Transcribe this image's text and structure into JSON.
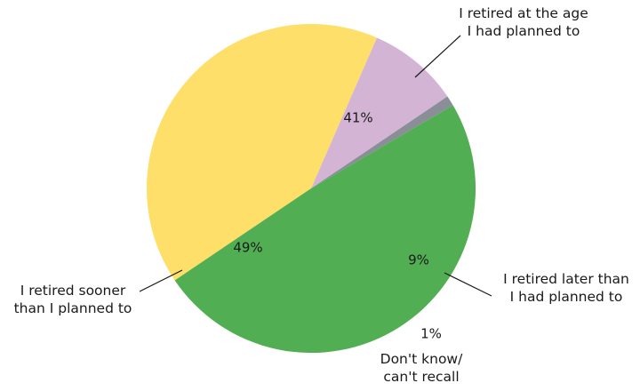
{
  "chart_data": {
    "type": "pie",
    "start_angle_deg": 236,
    "direction": "clockwise",
    "slices": [
      {
        "label": [
          "I retired at the age",
          "I had planned to"
        ],
        "value": 41,
        "value_label": "41%",
        "color": "#FEDF69"
      },
      {
        "label": [
          "I retired later than",
          "I had planned to"
        ],
        "value": 9,
        "value_label": "9%",
        "color": "#D4B4D5"
      },
      {
        "label": [
          "Don't know/",
          "can't recall"
        ],
        "value": 1,
        "value_label": "1%",
        "color": "#8A8E96"
      },
      {
        "label": [
          "I retired sooner",
          "than I planned to"
        ],
        "value": 49,
        "value_label": "49%",
        "color": "#52AE53"
      }
    ]
  }
}
